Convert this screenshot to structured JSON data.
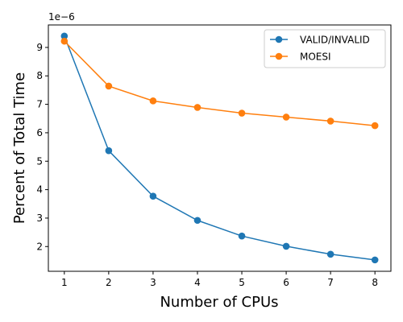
{
  "chart_data": {
    "type": "line",
    "x": [
      1,
      2,
      3,
      4,
      5,
      6,
      7,
      8
    ],
    "series": [
      {
        "name": "VALID/INVALID",
        "color": "#1f77b4",
        "values": [
          9.4,
          5.37,
          3.77,
          2.92,
          2.37,
          2.01,
          1.73,
          1.53
        ]
      },
      {
        "name": "MOESI",
        "color": "#ff7f0e",
        "values": [
          9.22,
          7.64,
          7.12,
          6.89,
          6.69,
          6.55,
          6.41,
          6.25
        ]
      }
    ],
    "title": "",
    "xlabel": "Number of CPUs",
    "ylabel": "Percent of Total Time",
    "y_scale_label": "1e−6",
    "y_multiplier": 1e-06,
    "xlim": [
      0.64,
      8.36
    ],
    "ylim": [
      1.13,
      9.79
    ],
    "xticks": [
      "1",
      "2",
      "3",
      "4",
      "5",
      "6",
      "7",
      "8"
    ],
    "yticks": [
      "2",
      "3",
      "4",
      "5",
      "6",
      "7",
      "8",
      "9"
    ],
    "grid": false,
    "legend_position": "top-right"
  }
}
